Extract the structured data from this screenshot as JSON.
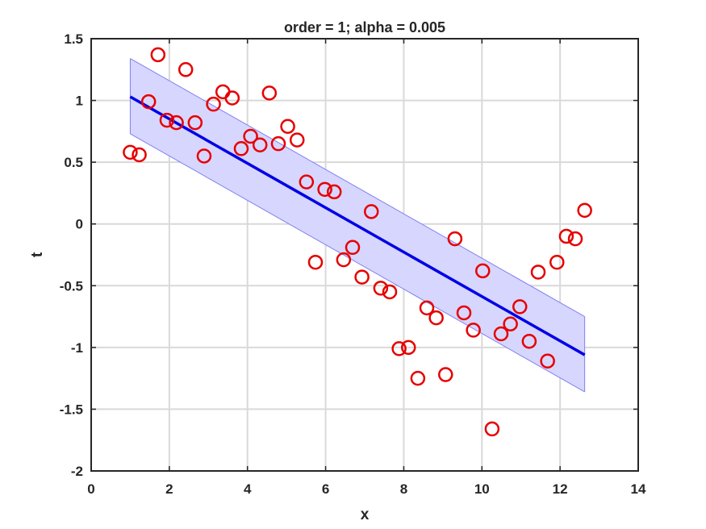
{
  "chart_data": {
    "type": "scatter",
    "title": "order = 1; alpha = 0.005",
    "xlabel": "x",
    "ylabel": "t",
    "xlim": [
      0,
      14
    ],
    "ylim": [
      -2,
      1.5
    ],
    "xticks": [
      0,
      2,
      4,
      6,
      8,
      10,
      12,
      14
    ],
    "xtick_labels": [
      "0",
      "2",
      "4",
      "6",
      "8",
      "10",
      "12",
      "14"
    ],
    "yticks": [
      -2,
      -1.5,
      -1,
      -0.5,
      0,
      0.5,
      1,
      1.5
    ],
    "ytick_labels": [
      "-2",
      "-1.5",
      "-1",
      "-0.5",
      "0",
      "0.5",
      "1",
      "1.5"
    ],
    "grid": true,
    "colors": {
      "points": "#e60000",
      "fit_line": "#0000e6",
      "band_fill": "#d6d6ff",
      "band_edge": "#8080f0",
      "grid": "#d9d9d9",
      "axes": "#262626"
    },
    "points": {
      "x": [
        1.0,
        1.23,
        1.47,
        1.71,
        1.94,
        2.18,
        2.42,
        2.66,
        2.89,
        3.13,
        3.37,
        3.61,
        3.84,
        4.08,
        4.32,
        4.56,
        4.79,
        5.03,
        5.27,
        5.51,
        5.74,
        5.98,
        6.22,
        6.46,
        6.69,
        6.93,
        7.17,
        7.41,
        7.64,
        7.88,
        8.12,
        8.36,
        8.59,
        8.83,
        9.07,
        9.31,
        9.54,
        9.78,
        10.02,
        10.26,
        10.49,
        10.73,
        10.97,
        11.21,
        11.44,
        11.68,
        11.92,
        12.16,
        12.39,
        12.63
      ],
      "y": [
        0.58,
        0.56,
        0.99,
        1.37,
        0.84,
        0.82,
        1.25,
        0.82,
        0.55,
        0.97,
        1.07,
        1.02,
        0.61,
        0.71,
        0.64,
        1.06,
        0.65,
        0.79,
        0.68,
        0.34,
        -0.31,
        0.28,
        0.26,
        -0.29,
        -0.19,
        -0.43,
        0.1,
        -0.52,
        -0.55,
        -1.01,
        -1.0,
        -1.25,
        -0.68,
        -0.76,
        -1.22,
        -0.12,
        -0.72,
        -0.86,
        -0.38,
        -1.66,
        -0.89,
        -0.81,
        -0.67,
        -0.95,
        -0.39,
        -1.11,
        -0.31,
        -0.1,
        -0.12,
        0.11
      ]
    },
    "fit": {
      "x": [
        1.0,
        12.63
      ],
      "y": [
        1.03,
        -1.06
      ]
    },
    "band": {
      "x": [
        1.0,
        12.63
      ],
      "upper": [
        1.34,
        -0.75
      ],
      "lower": [
        0.73,
        -1.36
      ]
    }
  }
}
